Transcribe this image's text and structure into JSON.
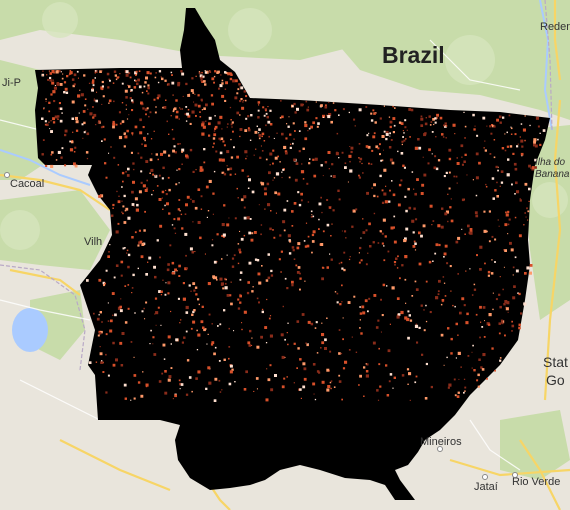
{
  "map": {
    "country_label": "Brazil",
    "places": [
      {
        "id": "redencao",
        "name": "Redenção"
      },
      {
        "id": "ji-parana",
        "name": "Ji-P"
      },
      {
        "id": "cacoal",
        "name": "Cacoal"
      },
      {
        "id": "vilhena",
        "name": "Vilh"
      },
      {
        "id": "ilha-do-bananal-1",
        "name": "Ilha do"
      },
      {
        "id": "ilha-do-bananal-2",
        "name": "Banana"
      },
      {
        "id": "state-1",
        "name": "Stat"
      },
      {
        "id": "state-2",
        "name": "Go"
      },
      {
        "id": "mineiros",
        "name": "Mineiros"
      },
      {
        "id": "jatai",
        "name": "Jataí"
      },
      {
        "id": "rio-verde",
        "name": "Rio Verde"
      }
    ],
    "colors": {
      "basemap": "#e9e5dc",
      "vegetation": "#c6dba8",
      "water": "#aacbff",
      "road": "#f7d566",
      "overlay": "#000000",
      "hotspot_dark": "#8a2c1a",
      "hotspot_mid": "#d8502a",
      "hotspot_light": "#ff9a6a",
      "hotspot_white": "#ffe0d0"
    }
  }
}
